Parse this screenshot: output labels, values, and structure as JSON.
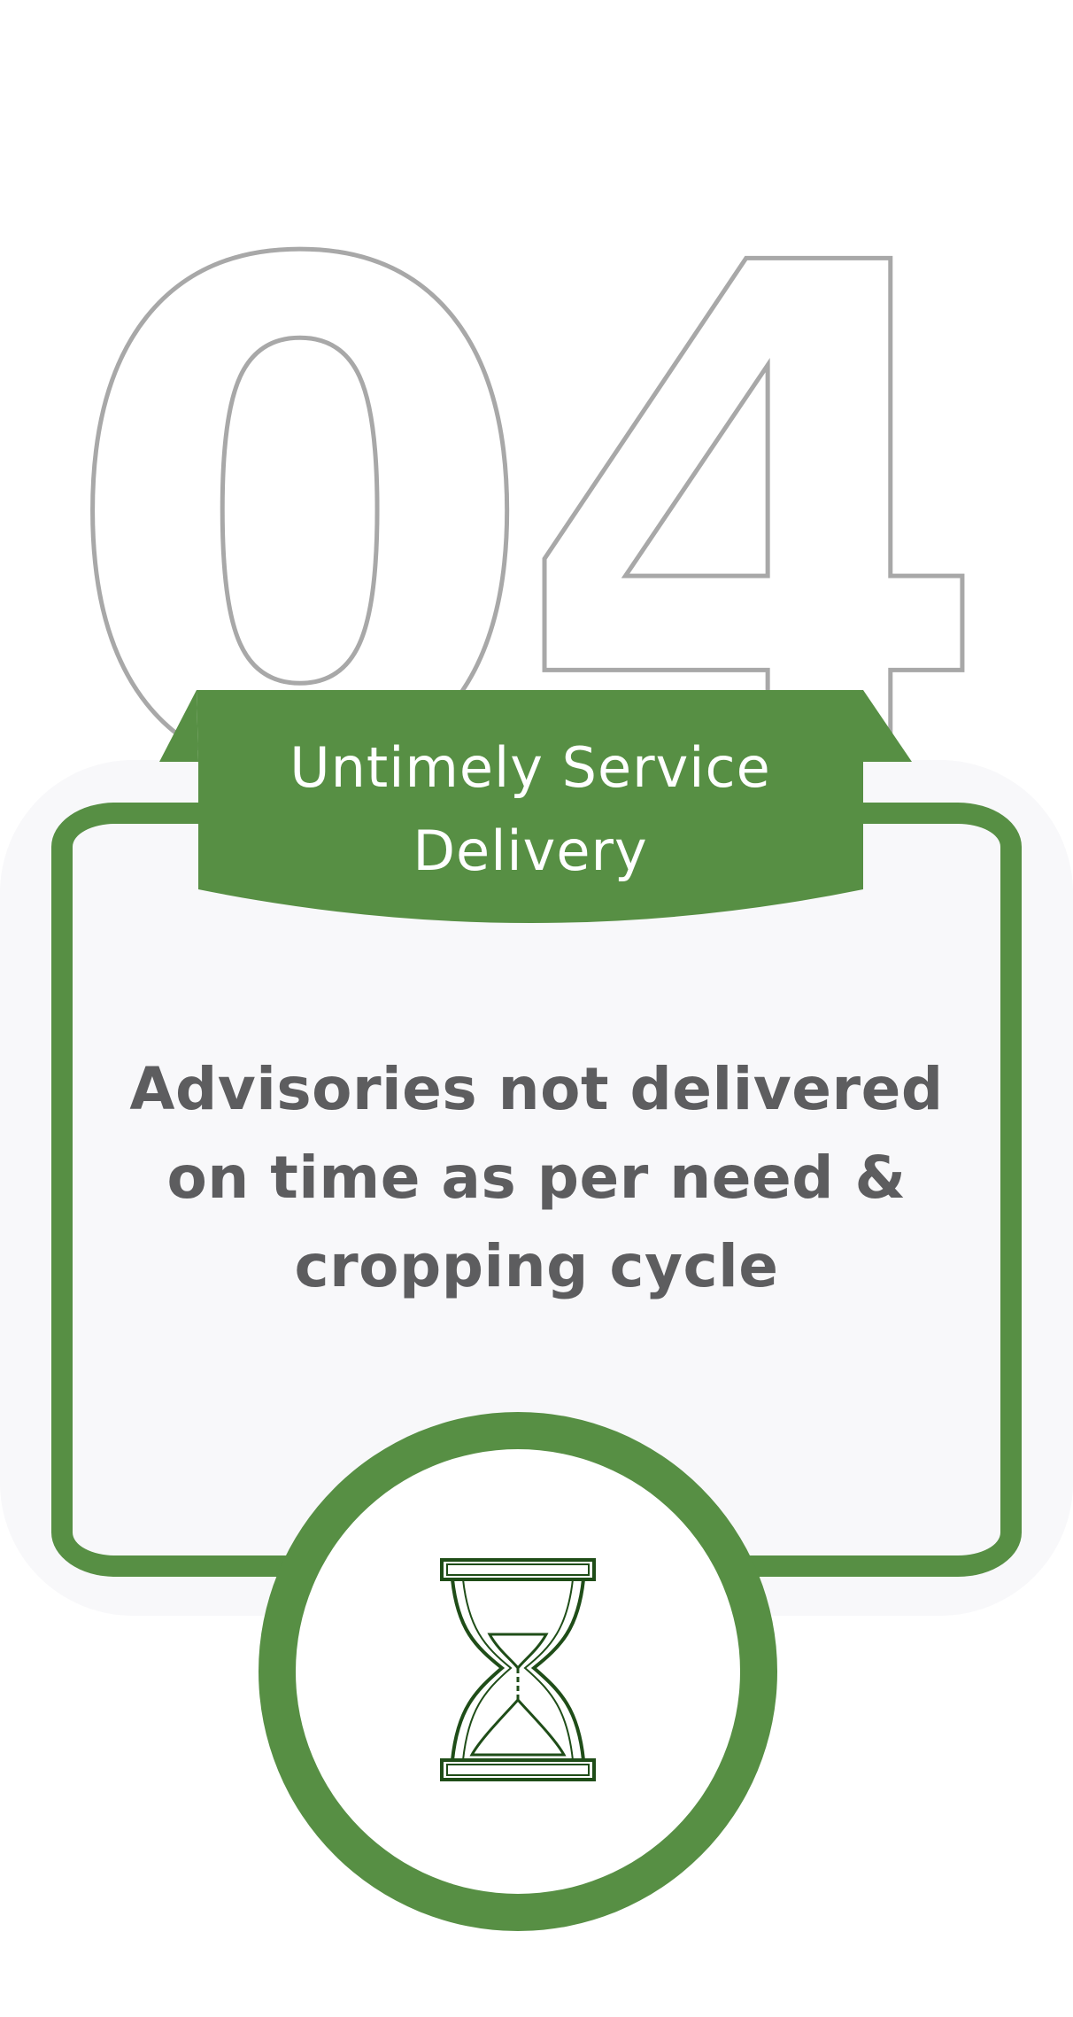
{
  "card": {
    "number": "04",
    "title": "Untimely Service Delivery",
    "description": "Advisories not delivered on time as per need & cropping cycle"
  },
  "colors": {
    "accent": "#578f44",
    "text": "#5d5d5f",
    "outline": "#a8a8a8",
    "card_background": "#f8f8fa"
  },
  "icon": "hourglass-icon"
}
